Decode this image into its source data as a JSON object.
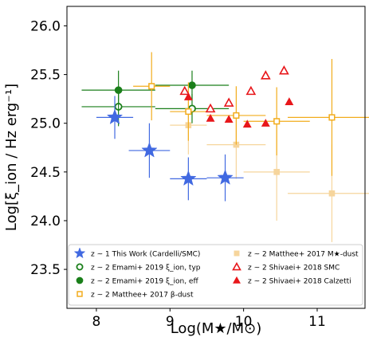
{
  "chart_data": {
    "type": "scatter",
    "xlabel": "Log(M★/M⊙)",
    "ylabel": "Log[ξ_ion / Hz erg⁻¹]",
    "xlim": [
      7.6,
      11.65
    ],
    "ylim": [
      23.1,
      26.2
    ],
    "xticks": [
      "8",
      "9",
      "10",
      "11"
    ],
    "yticks": [
      "23.5",
      "24.0",
      "24.5",
      "25.0",
      "25.5",
      "26.0"
    ],
    "legend_position": "lower center",
    "colors": {
      "this_work": "#4169e1",
      "emami": "#1a7f1a",
      "matthee_beta": "#f2ac1c",
      "matthee_mstar": "#f6d59c",
      "shivaei": "#e8171b"
    },
    "series": [
      {
        "name": "z ~ 1 This Work (Cardelli/SMC)",
        "marker": "star",
        "points": [
          {
            "x": 8.25,
            "y": 25.06,
            "xerr": 0.25,
            "yerr": 0.22
          },
          {
            "x": 8.72,
            "y": 24.72,
            "xerr": 0.28,
            "yerr": 0.28
          },
          {
            "x": 9.25,
            "y": 24.43,
            "xerr": 0.25,
            "yerr": 0.22
          },
          {
            "x": 9.75,
            "y": 24.44,
            "xerr": 0.25,
            "yerr": 0.24
          }
        ]
      },
      {
        "name": "z ~ 2 Emami+ 2019 ξ_ion, typ",
        "marker": "circle-open",
        "points": [
          {
            "x": 8.3,
            "y": 25.17,
            "xerr": 0.5,
            "yerr": 0.2
          },
          {
            "x": 9.3,
            "y": 25.15,
            "xerr": 0.5,
            "yerr": 0.15
          }
        ]
      },
      {
        "name": "z ~ 2 Emami+ 2019 ξ_ion, eff",
        "marker": "circle-filled",
        "points": [
          {
            "x": 8.3,
            "y": 25.34,
            "xerr": 0.5,
            "yerr": 0.2
          },
          {
            "x": 9.3,
            "y": 25.39,
            "xerr": 0.5,
            "yerr": 0.15
          }
        ]
      },
      {
        "name": "z ~ 2 Matthee+ 2017 β-dust",
        "marker": "square-open",
        "points": [
          {
            "x": 8.75,
            "y": 25.38,
            "xerr": 0.25,
            "yerr": 0.35
          },
          {
            "x": 9.25,
            "y": 25.12,
            "xerr": 0.25,
            "yerr": 0.3
          },
          {
            "x": 9.9,
            "y": 25.08,
            "xerr": 0.4,
            "yerr": 0.3
          },
          {
            "x": 10.45,
            "y": 25.02,
            "xerr": 0.45,
            "yerr": 0.35
          },
          {
            "x": 11.2,
            "y": 25.06,
            "xerr": 0.6,
            "yerr": 0.6
          }
        ]
      },
      {
        "name": "z ~ 2 Matthee+ 2017 M★-dust",
        "marker": "square-filled-light",
        "points": [
          {
            "x": 9.25,
            "y": 24.98,
            "xerr": 0.25,
            "yerr": 0.3
          },
          {
            "x": 9.9,
            "y": 24.78,
            "xerr": 0.4,
            "yerr": 0.35
          },
          {
            "x": 10.45,
            "y": 24.5,
            "xerr": 0.45,
            "yerr": 0.5
          },
          {
            "x": 11.2,
            "y": 24.28,
            "xerr": 0.6,
            "yerr": 0.5
          }
        ]
      },
      {
        "name": "z ~ 2 Shivaei+ 2018 SMC",
        "marker": "triangle-open",
        "points": [
          {
            "x": 9.2,
            "y": 25.33
          },
          {
            "x": 9.55,
            "y": 25.15
          },
          {
            "x": 9.8,
            "y": 25.21
          },
          {
            "x": 10.1,
            "y": 25.33
          },
          {
            "x": 10.3,
            "y": 25.49
          },
          {
            "x": 10.55,
            "y": 25.54
          }
        ]
      },
      {
        "name": "z ~ 2 Shivaei+ 2018 Calzetti",
        "marker": "triangle-filled",
        "points": [
          {
            "x": 9.25,
            "y": 25.27
          },
          {
            "x": 9.55,
            "y": 25.05
          },
          {
            "x": 9.8,
            "y": 25.04
          },
          {
            "x": 10.05,
            "y": 24.99
          },
          {
            "x": 10.3,
            "y": 25.0
          },
          {
            "x": 10.62,
            "y": 25.22
          }
        ]
      }
    ]
  },
  "legend": {
    "entries": [
      {
        "marker": "star",
        "color": "#4169e1",
        "text": "z ~ 1 This Work (Cardelli/SMC)"
      },
      {
        "marker": "square-filled-light",
        "color": "#f6d59c",
        "text": "z ~ 2 Matthee+ 2017 M★-dust"
      },
      {
        "marker": "circle-open",
        "color": "#1a7f1a",
        "text": "z ~ 2 Emami+ 2019 ξ_ion, typ"
      },
      {
        "marker": "triangle-open",
        "color": "#e8171b",
        "text": "z ~ 2 Shivaei+ 2018 SMC"
      },
      {
        "marker": "circle-filled",
        "color": "#1a7f1a",
        "text": "z ~ 2 Emami+ 2019 ξ_ion, eff"
      },
      {
        "marker": "triangle-filled",
        "color": "#e8171b",
        "text": "z ~ 2 Shivaei+ 2018 Calzetti"
      },
      {
        "marker": "square-open",
        "color": "#f2ac1c",
        "text": "z ~ 2 Matthee+ 2017 β-dust"
      }
    ]
  }
}
